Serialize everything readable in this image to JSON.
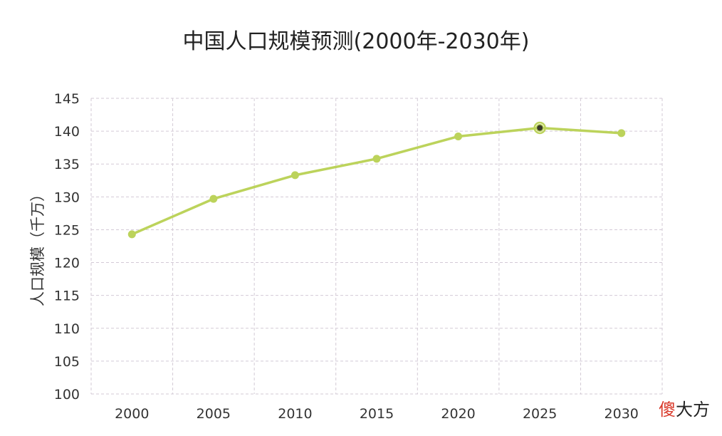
{
  "chart_data": {
    "type": "line",
    "title": "中国人口规模预测(2000年-2030年)",
    "xlabel": "",
    "ylabel": "人口规模（千万）",
    "x": [
      "2000",
      "2005",
      "2010",
      "2015",
      "2020",
      "2025",
      "2030"
    ],
    "series": [
      {
        "values": [
          124.3,
          129.7,
          133.3,
          135.8,
          139.2,
          140.5,
          139.7
        ]
      }
    ],
    "highlighted_point": "2025",
    "ylim": [
      100,
      145
    ],
    "yticks": [
      "100",
      "105",
      "110",
      "115",
      "120",
      "125",
      "130",
      "135",
      "140",
      "145"
    ],
    "grid": true,
    "line_color": "#bcd35b",
    "highlight_color": "#3a3a2a",
    "grid_color": "#d3cad6"
  },
  "watermark": {
    "part1": "傻",
    "part2": "大方",
    "color_part1": "#d93a2b"
  }
}
